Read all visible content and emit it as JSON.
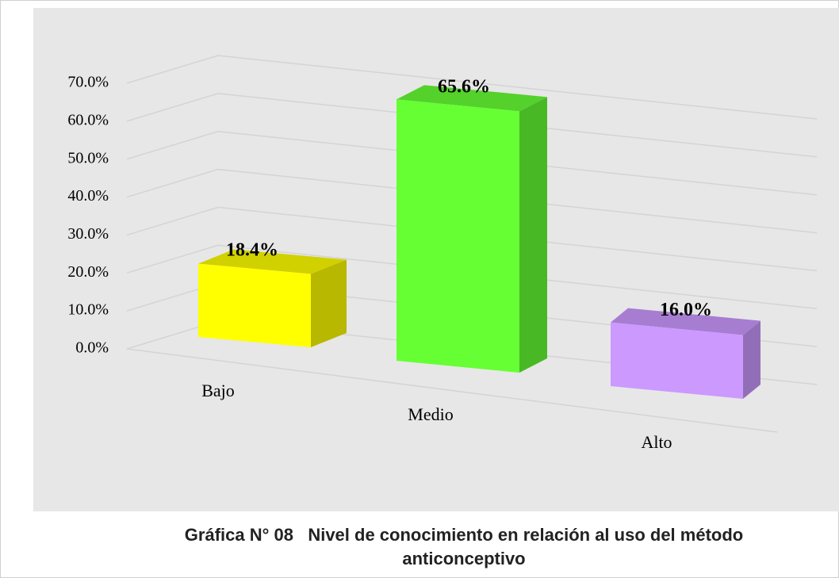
{
  "chart_data": {
    "type": "bar3d",
    "title": "Gráfica N° 08   Nivel de conocimiento en relación al uso del método  anticonceptivo",
    "categories": [
      "Bajo",
      "Medio",
      "Alto"
    ],
    "values": [
      18.4,
      65.6,
      16.0
    ],
    "value_labels": [
      "18.4%",
      "65.6%",
      "16.0%"
    ],
    "colors": [
      "#ffff00",
      "#66ff33",
      "#cc99ff"
    ],
    "ylim": [
      0,
      70
    ],
    "yticks": [
      {
        "value": 0,
        "label": "0.0%"
      },
      {
        "value": 10,
        "label": "10.0%"
      },
      {
        "value": 20,
        "label": "20.0%"
      },
      {
        "value": 30,
        "label": "30.0%"
      },
      {
        "value": 40,
        "label": "40.0%"
      },
      {
        "value": 50,
        "label": "50.0%"
      },
      {
        "value": 60,
        "label": "60.0%"
      },
      {
        "value": 70,
        "label": "70.0%"
      }
    ],
    "grid": true
  }
}
